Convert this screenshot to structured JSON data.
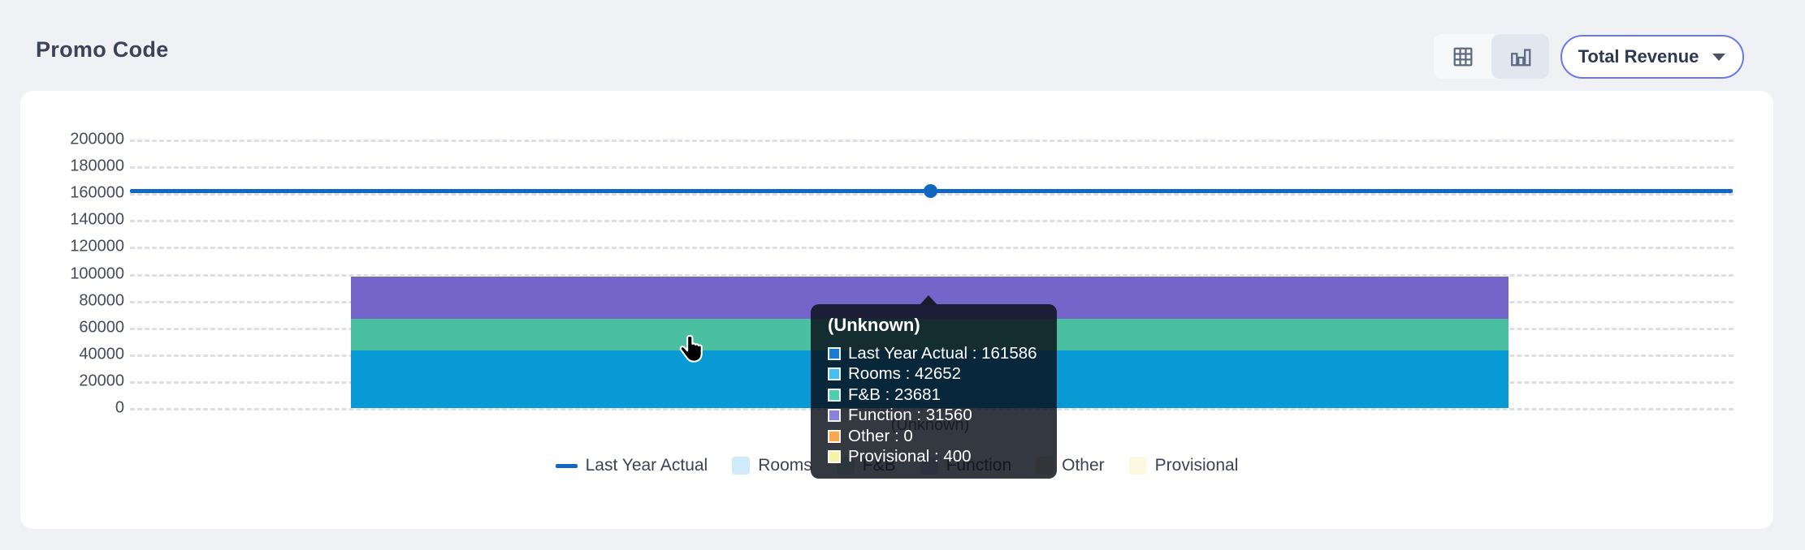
{
  "page": {
    "title": "Promo Code"
  },
  "toolbar": {
    "view_toggle": [
      {
        "id": "table-view",
        "icon": "table-grid-icon",
        "selected": false
      },
      {
        "id": "chart-view",
        "icon": "bar-chart-icon",
        "selected": true
      }
    ],
    "metric_dropdown": {
      "label": "Total Revenue",
      "icon": "chevron-down-icon"
    }
  },
  "chart_data": {
    "type": "bar",
    "stacked": true,
    "categories": [
      "(Unknown)"
    ],
    "series": [
      {
        "name": "Last Year Actual",
        "render": "line",
        "values": [
          161586
        ],
        "color": "#1467c1"
      },
      {
        "name": "Rooms",
        "render": "bar",
        "values": [
          42652
        ],
        "color": "#0999d5",
        "legend_color": "#cfeaf9"
      },
      {
        "name": "F&B",
        "render": "bar",
        "values": [
          23681
        ],
        "color": "#4bbfa2",
        "legend_color": "#d9f1ea"
      },
      {
        "name": "Function",
        "render": "bar",
        "values": [
          31560
        ],
        "color": "#7564ca",
        "legend_color": "#ded9f6"
      },
      {
        "name": "Other",
        "render": "bar",
        "values": [
          0
        ],
        "color": "#f9a84d",
        "legend_color": "#fde8c8"
      },
      {
        "name": "Provisional",
        "render": "bar",
        "values": [
          400
        ],
        "color": "#f6f4a4",
        "legend_color": "#fbf9e0"
      }
    ],
    "title": "Promo Code",
    "xlabel": "",
    "ylabel": "",
    "ylim": [
      0,
      200000
    ],
    "yticks": [
      "200000",
      "180000",
      "160000",
      "140000",
      "120000",
      "100000",
      "80000",
      "60000",
      "40000",
      "20000",
      "0"
    ],
    "grid": "horizontal-dashed",
    "legend_position": "bottom"
  },
  "tooltip": {
    "title": "(Unknown)",
    "separator": " : ",
    "rows": [
      {
        "label": "Last Year Actual",
        "value": "161586",
        "color": "#1f7ad4"
      },
      {
        "label": "Rooms",
        "value": "42652",
        "color": "#45bdf5"
      },
      {
        "label": "F&B",
        "value": "23681",
        "color": "#4fcfad"
      },
      {
        "label": "Function",
        "value": "31560",
        "color": "#8b80de"
      },
      {
        "label": "Other",
        "value": "0",
        "color": "#f9a84d"
      },
      {
        "label": "Provisional",
        "value": "400",
        "color": "#f6f4a4"
      }
    ]
  },
  "cursor": {
    "icon": "pointer-hand-cursor"
  }
}
